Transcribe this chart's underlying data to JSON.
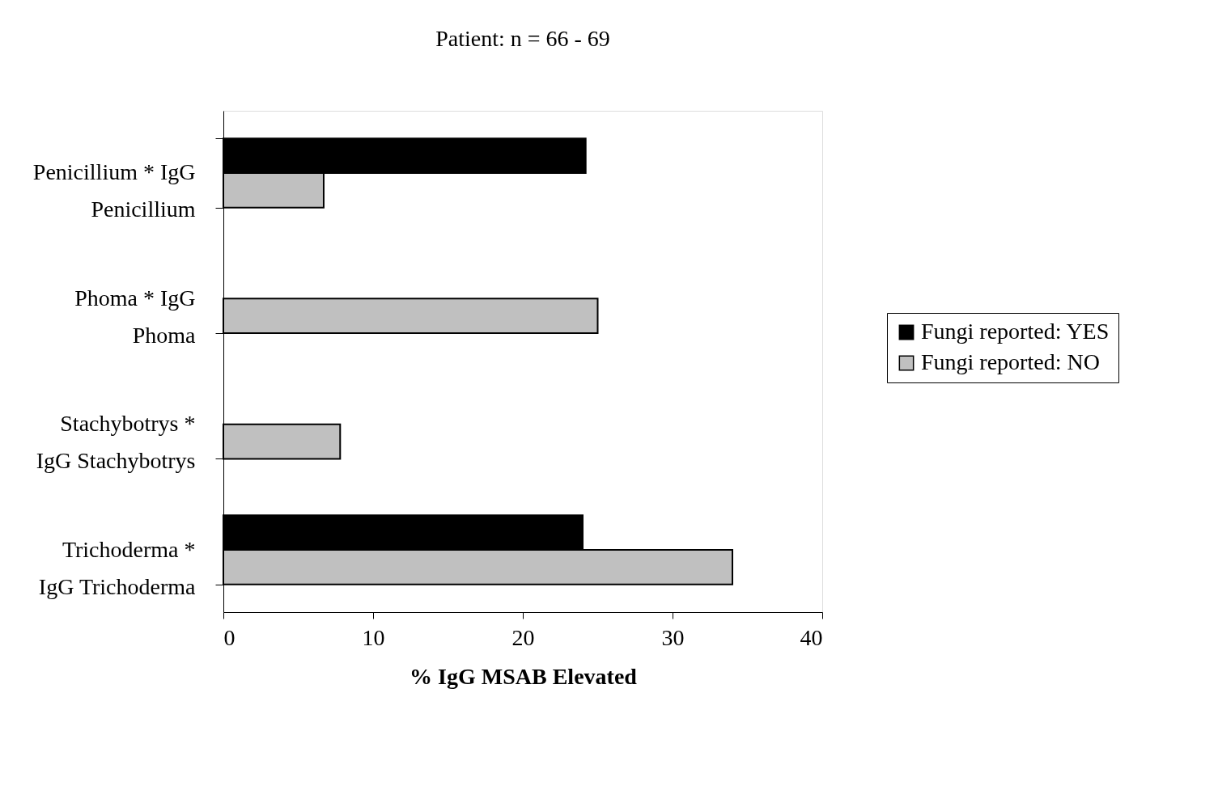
{
  "chart_data": {
    "type": "bar",
    "orientation": "horizontal",
    "title": "Patient: n = 66 - 69",
    "xlabel": "% IgG MSAB Elevated",
    "categories": [
      "Penicillium * IgG\nPenicillium",
      "Phoma * IgG\nPhoma",
      "Stachybotrys *\nIgG Stachybotrys",
      "Trichoderma *\nIgG Trichoderma"
    ],
    "series": [
      {
        "name": "Fungi reported: YES",
        "color": "#000000",
        "values": [
          24.2,
          null,
          null,
          24.0
        ]
      },
      {
        "name": "Fungi reported: NO",
        "color": "#c0c0c0",
        "values": [
          6.7,
          25.0,
          7.8,
          34.0
        ]
      }
    ],
    "xlim": [
      0,
      40
    ],
    "xticks": [
      0,
      10,
      20,
      30,
      40
    ],
    "grid": false,
    "legend": "right"
  }
}
